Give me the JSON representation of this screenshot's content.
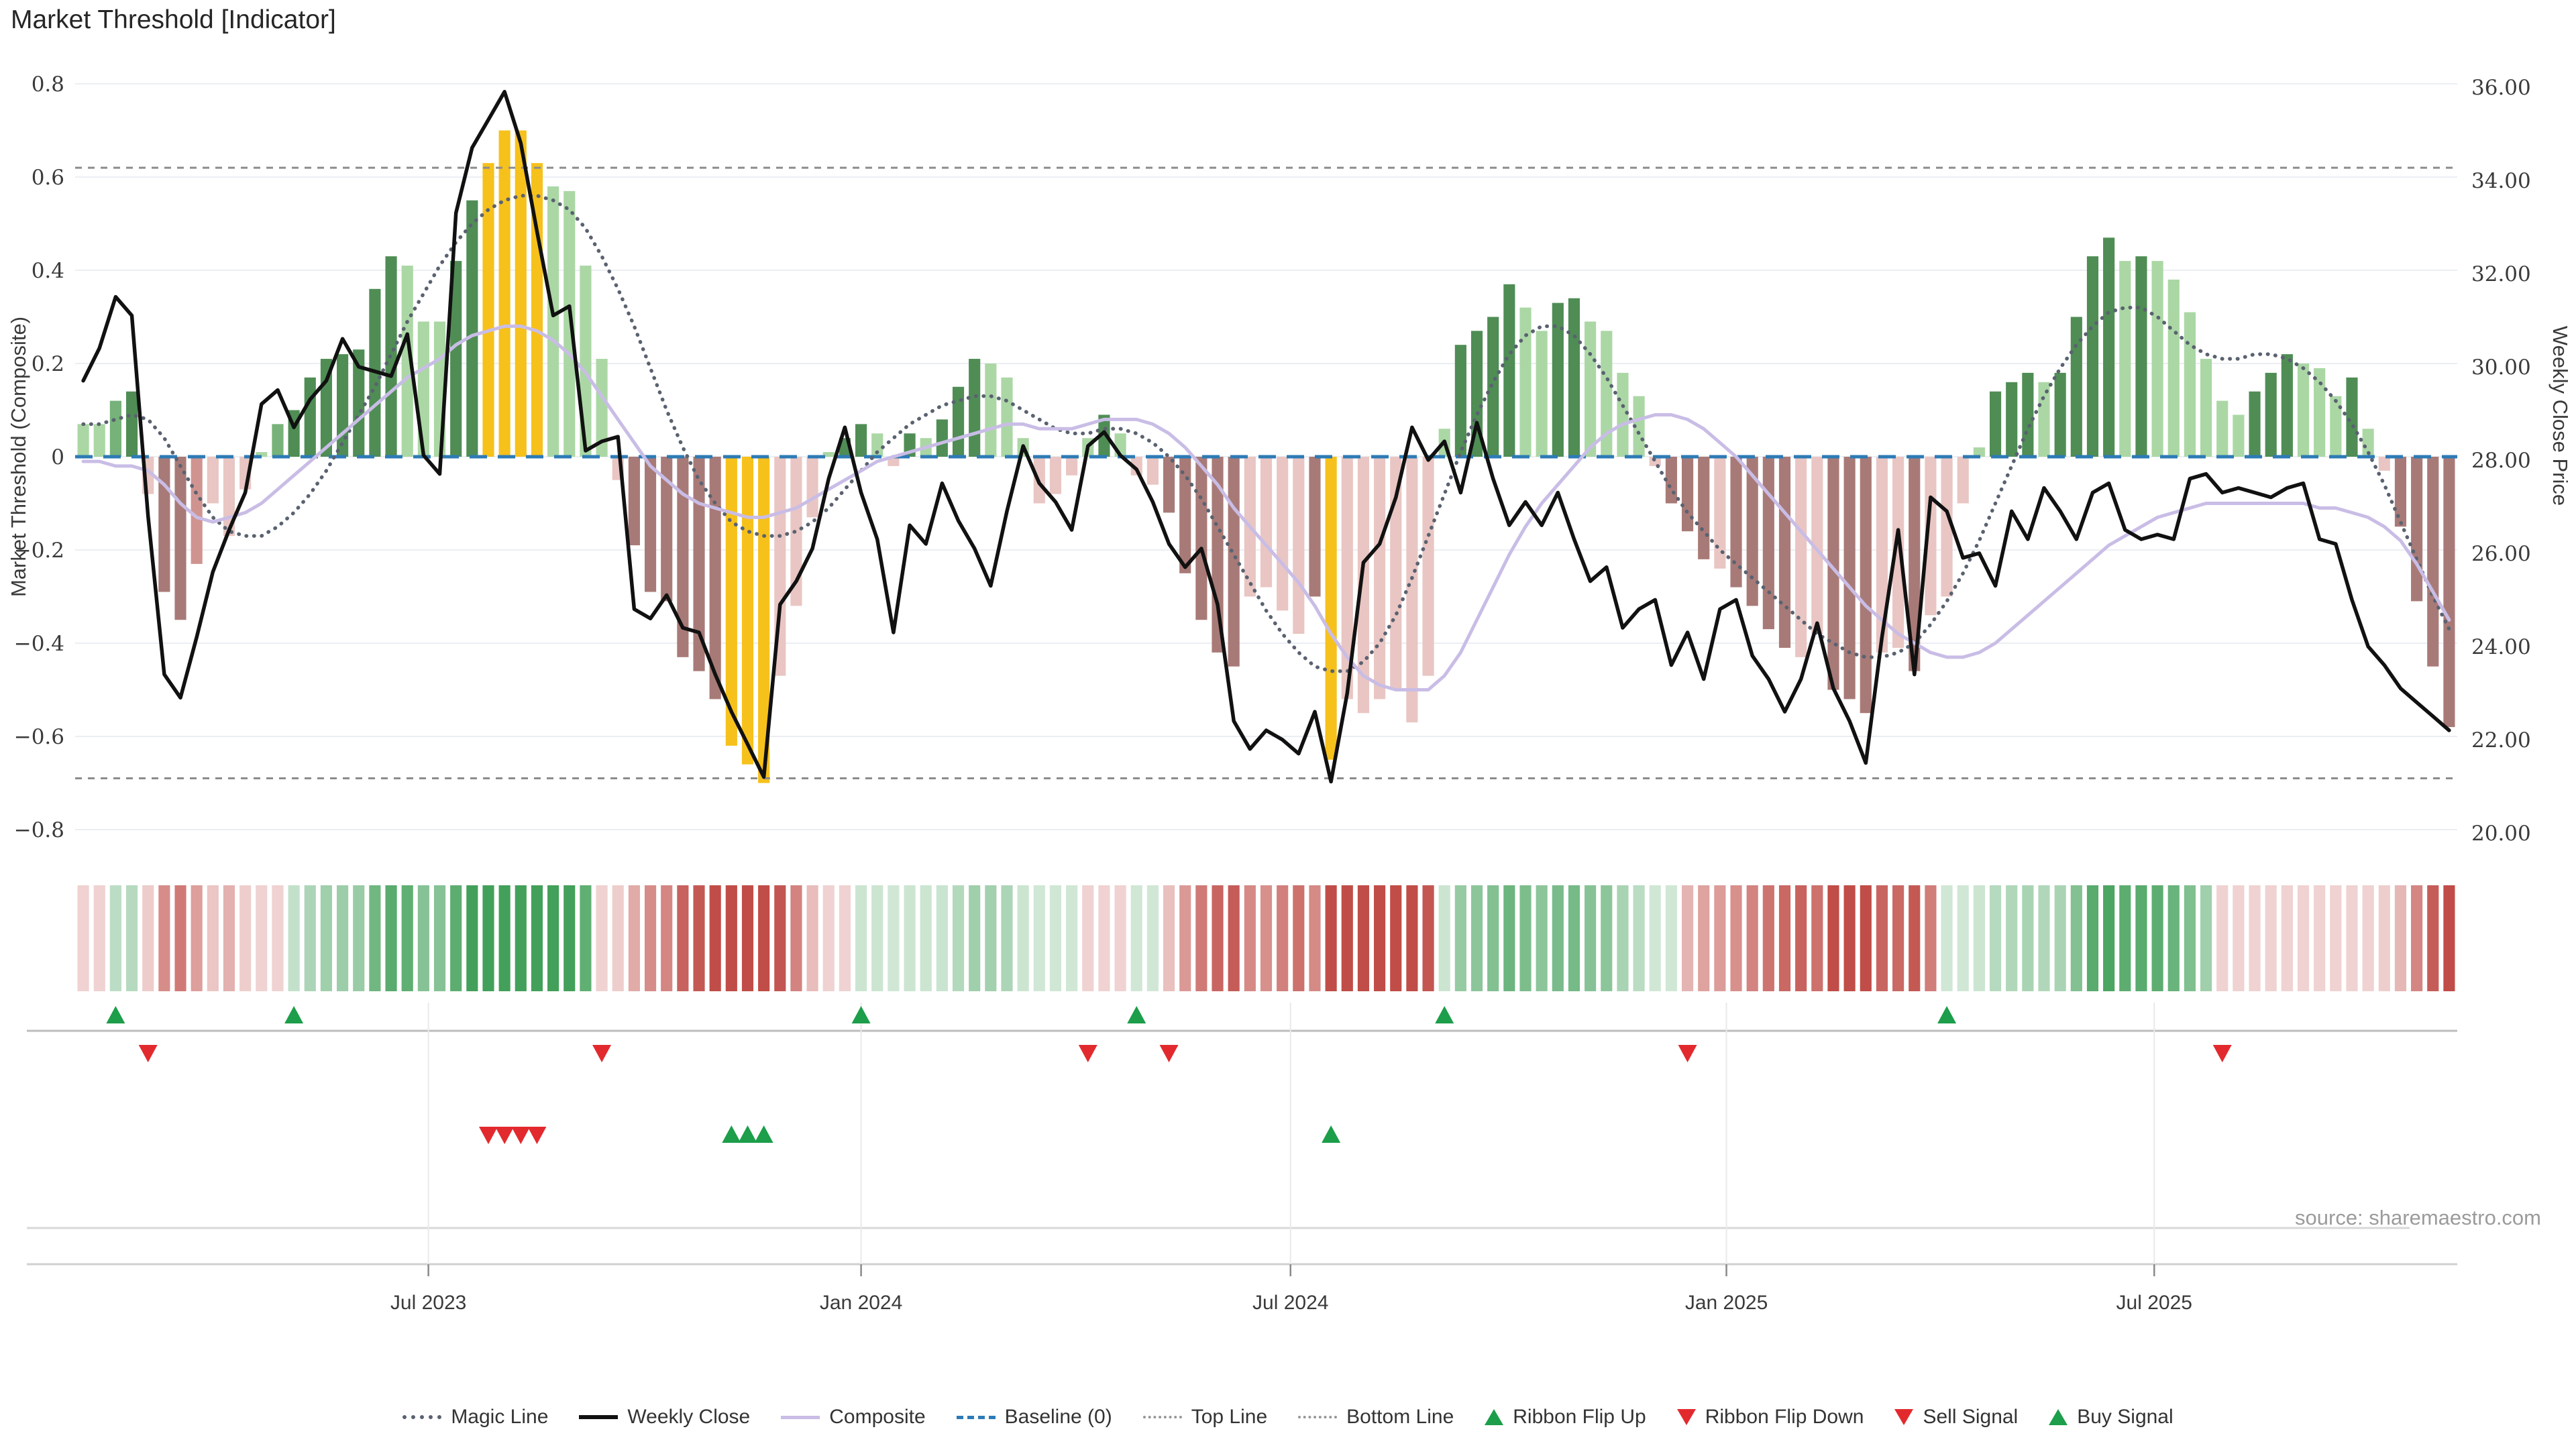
{
  "title": "Market Threshold [Indicator]",
  "source": "source: sharemaestro.com",
  "axes": {
    "left_label": "Market Threshold (Composite)",
    "right_label": "Weekly Close Price",
    "left_ticks": [
      {
        "v": 0.8,
        "label": "0.8"
      },
      {
        "v": 0.6,
        "label": "0.6"
      },
      {
        "v": 0.4,
        "label": "0.4"
      },
      {
        "v": 0.2,
        "label": "0.2"
      },
      {
        "v": 0,
        "label": "0"
      },
      {
        "v": -0.2,
        "label": "−0.2"
      },
      {
        "v": -0.4,
        "label": "−0.4"
      },
      {
        "v": -0.6,
        "label": "−0.6"
      },
      {
        "v": -0.8,
        "label": "−0.8"
      }
    ],
    "right_ticks": [
      {
        "p": 36,
        "label": "36.00"
      },
      {
        "p": 34,
        "label": "34.00"
      },
      {
        "p": 32,
        "label": "32.00"
      },
      {
        "p": 30,
        "label": "30.00"
      },
      {
        "p": 28,
        "label": "28.00"
      },
      {
        "p": 26,
        "label": "26.00"
      },
      {
        "p": 24,
        "label": "24.00"
      },
      {
        "p": 22,
        "label": "22.00"
      },
      {
        "p": 20,
        "label": "20.00"
      }
    ],
    "x_ticks": [
      {
        "label": "Jul 2023",
        "week": 21.8
      },
      {
        "label": "Jan 2024",
        "week": 48.5
      },
      {
        "label": "Jul 2024",
        "week": 75.0
      },
      {
        "label": "Jan 2025",
        "week": 101.9
      },
      {
        "label": "Jul 2025",
        "week": 128.3
      }
    ]
  },
  "chart_data": {
    "type": "combo-bar-line",
    "x_unit": "week",
    "n_weeks": 147,
    "left_range": [
      -0.85,
      0.85
    ],
    "right_range": [
      20,
      36.4
    ],
    "baseline": 0,
    "top_line": 0.62,
    "bottom_line": -0.69,
    "grid": "horizontal, every 0.2",
    "legend_position": "bottom center",
    "composite_bars": [
      0.07,
      0.07,
      0.12,
      0.14,
      -0.08,
      -0.29,
      -0.35,
      -0.23,
      -0.1,
      -0.17,
      -0.07,
      0.01,
      0.07,
      0.1,
      0.17,
      0.21,
      0.22,
      0.23,
      0.36,
      0.43,
      0.41,
      0.29,
      0.29,
      0.42,
      0.55,
      0.63,
      0.7,
      0.7,
      0.63,
      0.58,
      0.57,
      0.41,
      0.21,
      -0.05,
      -0.19,
      -0.29,
      -0.31,
      -0.43,
      -0.46,
      -0.52,
      -0.62,
      -0.66,
      -0.7,
      -0.47,
      -0.32,
      -0.13,
      0.01,
      0.04,
      0.07,
      0.05,
      -0.02,
      0.05,
      0.04,
      0.08,
      0.15,
      0.21,
      0.2,
      0.17,
      0.04,
      -0.1,
      -0.08,
      -0.04,
      0.04,
      0.09,
      0.05,
      -0.04,
      -0.06,
      -0.12,
      -0.25,
      -0.35,
      -0.42,
      -0.45,
      -0.3,
      -0.28,
      -0.33,
      -0.38,
      -0.3,
      -0.65,
      -0.52,
      -0.55,
      -0.52,
      -0.5,
      -0.57,
      -0.47,
      0.06,
      0.24,
      0.27,
      0.3,
      0.37,
      0.32,
      0.27,
      0.33,
      0.34,
      0.29,
      0.27,
      0.18,
      0.13,
      -0.02,
      -0.1,
      -0.16,
      -0.22,
      -0.24,
      -0.28,
      -0.32,
      -0.37,
      -0.41,
      -0.43,
      -0.38,
      -0.5,
      -0.52,
      -0.55,
      -0.42,
      -0.41,
      -0.46,
      -0.34,
      -0.3,
      -0.1,
      0.02,
      0.14,
      0.16,
      0.18,
      0.16,
      0.18,
      0.3,
      0.43,
      0.47,
      0.42,
      0.43,
      0.42,
      0.38,
      0.31,
      0.21,
      0.12,
      0.09,
      0.14,
      0.18,
      0.22,
      0.2,
      0.19,
      0.13,
      0.17,
      0.06,
      -0.03,
      -0.15,
      -0.31,
      -0.45,
      -0.58
    ],
    "bar_color_classes": [
      "lg",
      "lg",
      "mg",
      "dg",
      "pp",
      "dr",
      "dr",
      "mr",
      "pp",
      "pp",
      "pp",
      "lg",
      "mg",
      "dg",
      "dg",
      "dg",
      "dg",
      "dg",
      "dg",
      "dg",
      "lg",
      "lg",
      "lg",
      "dg",
      "dg",
      "or",
      "or",
      "or",
      "or",
      "lg",
      "lg",
      "lg",
      "lg",
      "pp",
      "dr",
      "dr",
      "dr",
      "dr",
      "dr",
      "dr",
      "or",
      "or",
      "or",
      "pp",
      "pp",
      "pp",
      "lg",
      "dg",
      "dg",
      "lg",
      "pp",
      "dg",
      "lg",
      "dg",
      "dg",
      "dg",
      "lg",
      "lg",
      "lg",
      "pp",
      "pp",
      "pp",
      "lg",
      "dg",
      "lg",
      "pp",
      "pp",
      "dr",
      "dr",
      "dr",
      "dr",
      "dr",
      "pp",
      "pp",
      "pp",
      "pp",
      "dr",
      "or",
      "pp",
      "pp",
      "pp",
      "pp",
      "pp",
      "pp",
      "lg",
      "dg",
      "dg",
      "dg",
      "dg",
      "lg",
      "lg",
      "dg",
      "dg",
      "lg",
      "lg",
      "lg",
      "lg",
      "pp",
      "dr",
      "dr",
      "dr",
      "pp",
      "dr",
      "dr",
      "dr",
      "dr",
      "pp",
      "pp",
      "dr",
      "dr",
      "dr",
      "pp",
      "pp",
      "dr",
      "pp",
      "pp",
      "pp",
      "lg",
      "dg",
      "dg",
      "dg",
      "lg",
      "dg",
      "dg",
      "dg",
      "dg",
      "lg",
      "dg",
      "lg",
      "lg",
      "lg",
      "lg",
      "lg",
      "lg",
      "dg",
      "dg",
      "dg",
      "lg",
      "lg",
      "lg",
      "dg",
      "lg",
      "pp",
      "dr",
      "dr",
      "dr",
      "dr"
    ],
    "weekly_close": [
      29.7,
      30.4,
      31.5,
      31.1,
      26.8,
      23.4,
      22.9,
      24.2,
      25.6,
      26.5,
      27.3,
      29.2,
      29.5,
      28.7,
      29.3,
      29.7,
      30.6,
      30.0,
      29.9,
      29.8,
      30.7,
      28.1,
      27.7,
      33.3,
      34.7,
      35.3,
      35.9,
      34.8,
      32.9,
      31.1,
      31.3,
      28.2,
      28.4,
      28.5,
      24.8,
      24.6,
      25.1,
      24.4,
      24.3,
      23.4,
      22.6,
      21.9,
      21.2,
      24.9,
      25.4,
      26.1,
      27.6,
      28.7,
      27.3,
      26.3,
      24.3,
      26.6,
      26.2,
      27.5,
      26.7,
      26.1,
      25.3,
      26.9,
      28.3,
      27.5,
      27.1,
      26.5,
      28.3,
      28.6,
      28.1,
      27.8,
      27.1,
      26.2,
      25.7,
      26.1,
      24.9,
      22.4,
      21.8,
      22.2,
      22.0,
      21.7,
      22.6,
      21.1,
      23.0,
      25.8,
      26.2,
      27.2,
      28.7,
      28.0,
      28.4,
      27.3,
      28.8,
      27.6,
      26.6,
      27.1,
      26.6,
      27.3,
      26.3,
      25.4,
      25.7,
      24.4,
      24.8,
      25.0,
      23.6,
      24.3,
      23.3,
      24.8,
      25.0,
      23.8,
      23.3,
      22.6,
      23.3,
      24.5,
      23.1,
      22.4,
      21.5,
      24.2,
      26.5,
      23.4,
      27.2,
      26.9,
      25.9,
      26.0,
      25.3,
      26.9,
      26.3,
      27.4,
      26.9,
      26.3,
      27.3,
      27.5,
      26.5,
      26.3,
      26.4,
      26.3,
      27.6,
      27.7,
      27.3,
      27.4,
      27.3,
      27.2,
      27.4,
      27.5,
      26.3,
      26.2,
      25.0,
      24.0,
      23.6,
      23.1,
      22.8,
      22.5,
      22.2
    ],
    "composite_line": [
      -0.01,
      -0.01,
      -0.02,
      -0.02,
      -0.03,
      -0.06,
      -0.1,
      -0.13,
      -0.14,
      -0.13,
      -0.12,
      -0.1,
      -0.07,
      -0.04,
      -0.01,
      0.02,
      0.05,
      0.08,
      0.11,
      0.14,
      0.17,
      0.19,
      0.21,
      0.24,
      0.26,
      0.27,
      0.28,
      0.28,
      0.27,
      0.25,
      0.22,
      0.18,
      0.13,
      0.08,
      0.03,
      -0.02,
      -0.05,
      -0.08,
      -0.1,
      -0.11,
      -0.12,
      -0.13,
      -0.13,
      -0.12,
      -0.11,
      -0.09,
      -0.07,
      -0.05,
      -0.03,
      -0.01,
      0.0,
      0.01,
      0.02,
      0.03,
      0.04,
      0.05,
      0.06,
      0.07,
      0.07,
      0.06,
      0.06,
      0.06,
      0.07,
      0.08,
      0.08,
      0.08,
      0.07,
      0.05,
      0.02,
      -0.02,
      -0.06,
      -0.11,
      -0.15,
      -0.19,
      -0.23,
      -0.27,
      -0.32,
      -0.38,
      -0.43,
      -0.47,
      -0.49,
      -0.5,
      -0.5,
      -0.5,
      -0.47,
      -0.42,
      -0.35,
      -0.28,
      -0.21,
      -0.15,
      -0.1,
      -0.06,
      -0.02,
      0.02,
      0.05,
      0.07,
      0.08,
      0.09,
      0.09,
      0.08,
      0.06,
      0.03,
      0.0,
      -0.04,
      -0.08,
      -0.12,
      -0.16,
      -0.2,
      -0.24,
      -0.28,
      -0.32,
      -0.35,
      -0.38,
      -0.4,
      -0.42,
      -0.43,
      -0.43,
      -0.42,
      -0.4,
      -0.37,
      -0.34,
      -0.31,
      -0.28,
      -0.25,
      -0.22,
      -0.19,
      -0.17,
      -0.15,
      -0.13,
      -0.12,
      -0.11,
      -0.1,
      -0.1,
      -0.1,
      -0.1,
      -0.1,
      -0.1,
      -0.1,
      -0.11,
      -0.11,
      -0.12,
      -0.13,
      -0.15,
      -0.18,
      -0.23,
      -0.29,
      -0.35
    ],
    "magic_line": [
      0.07,
      0.07,
      0.08,
      0.09,
      0.08,
      0.04,
      -0.02,
      -0.08,
      -0.13,
      -0.16,
      -0.17,
      -0.17,
      -0.15,
      -0.12,
      -0.08,
      -0.03,
      0.03,
      0.09,
      0.15,
      0.22,
      0.29,
      0.35,
      0.41,
      0.46,
      0.5,
      0.53,
      0.55,
      0.56,
      0.56,
      0.55,
      0.53,
      0.49,
      0.43,
      0.36,
      0.28,
      0.19,
      0.1,
      0.02,
      -0.05,
      -0.1,
      -0.14,
      -0.16,
      -0.17,
      -0.17,
      -0.16,
      -0.14,
      -0.11,
      -0.07,
      -0.03,
      0.01,
      0.04,
      0.07,
      0.09,
      0.11,
      0.12,
      0.13,
      0.13,
      0.12,
      0.1,
      0.08,
      0.06,
      0.05,
      0.05,
      0.06,
      0.06,
      0.05,
      0.03,
      0.0,
      -0.04,
      -0.09,
      -0.15,
      -0.21,
      -0.27,
      -0.33,
      -0.38,
      -0.42,
      -0.45,
      -0.46,
      -0.46,
      -0.44,
      -0.4,
      -0.34,
      -0.26,
      -0.17,
      -0.08,
      0.01,
      0.09,
      0.16,
      0.22,
      0.26,
      0.28,
      0.28,
      0.26,
      0.22,
      0.17,
      0.11,
      0.05,
      -0.01,
      -0.07,
      -0.12,
      -0.16,
      -0.2,
      -0.23,
      -0.26,
      -0.29,
      -0.32,
      -0.35,
      -0.38,
      -0.4,
      -0.42,
      -0.43,
      -0.43,
      -0.42,
      -0.4,
      -0.36,
      -0.31,
      -0.25,
      -0.18,
      -0.1,
      -0.02,
      0.06,
      0.13,
      0.19,
      0.24,
      0.28,
      0.31,
      0.32,
      0.32,
      0.3,
      0.27,
      0.24,
      0.22,
      0.21,
      0.21,
      0.22,
      0.22,
      0.21,
      0.19,
      0.16,
      0.12,
      0.07,
      0.01,
      -0.06,
      -0.14,
      -0.22,
      -0.3,
      -0.37
    ]
  },
  "signals": {
    "ribbon_flip_up_weeks": [
      2,
      13,
      48,
      65,
      84,
      115
    ],
    "ribbon_flip_down_weeks": [
      4,
      32,
      62,
      67,
      99,
      132
    ],
    "sell_signal_weeks": [
      25,
      26,
      27,
      28
    ],
    "buy_signal_weeks": [
      40,
      41,
      42,
      77
    ],
    "ribbon_start_sign": -1
  },
  "colors": {
    "bar_classes": {
      "lg": "#ABD7A5",
      "mg": "#76B279",
      "dg": "#4F8D55",
      "pp": "#E9C6C3",
      "mr": "#D09490",
      "dr": "#A87A77",
      "or": "#F6C11B"
    },
    "weekly_close": "#111111",
    "composite_line": "#C9BDE6",
    "magic_line": "#5A6270",
    "baseline": "#2D7BB6",
    "threshold_line": "#8C8C8C",
    "gridline": "#EBEEF3",
    "ribbon_green": "#43A05A",
    "ribbon_red": "#C04D48",
    "signal_green": "#1C9E4A",
    "signal_red": "#E22A2E",
    "panel_line": "#BDBDBD",
    "panel_faint_line": "#D8D8D8",
    "axis_line": "#D0D0D0"
  },
  "legend": {
    "items": [
      {
        "label": "Magic Line",
        "marker": "dotted-dark",
        "shape": "line"
      },
      {
        "label": "Weekly Close",
        "marker": "solid-black",
        "shape": "line"
      },
      {
        "label": "Composite",
        "marker": "solid-purple",
        "shape": "line"
      },
      {
        "label": "Baseline (0)",
        "marker": "dashed-blue",
        "shape": "line"
      },
      {
        "label": "Top Line",
        "marker": "dotted-gray",
        "shape": "line"
      },
      {
        "label": "Bottom Line",
        "marker": "dotted-gray",
        "shape": "line"
      },
      {
        "label": "Ribbon Flip Up",
        "marker": "tri-up",
        "shape": "triangle"
      },
      {
        "label": "Ribbon Flip Down",
        "marker": "tri-down",
        "shape": "triangle"
      },
      {
        "label": "Sell Signal",
        "marker": "tri-down",
        "shape": "triangle"
      },
      {
        "label": "Buy Signal",
        "marker": "tri-up",
        "shape": "triangle"
      }
    ]
  }
}
